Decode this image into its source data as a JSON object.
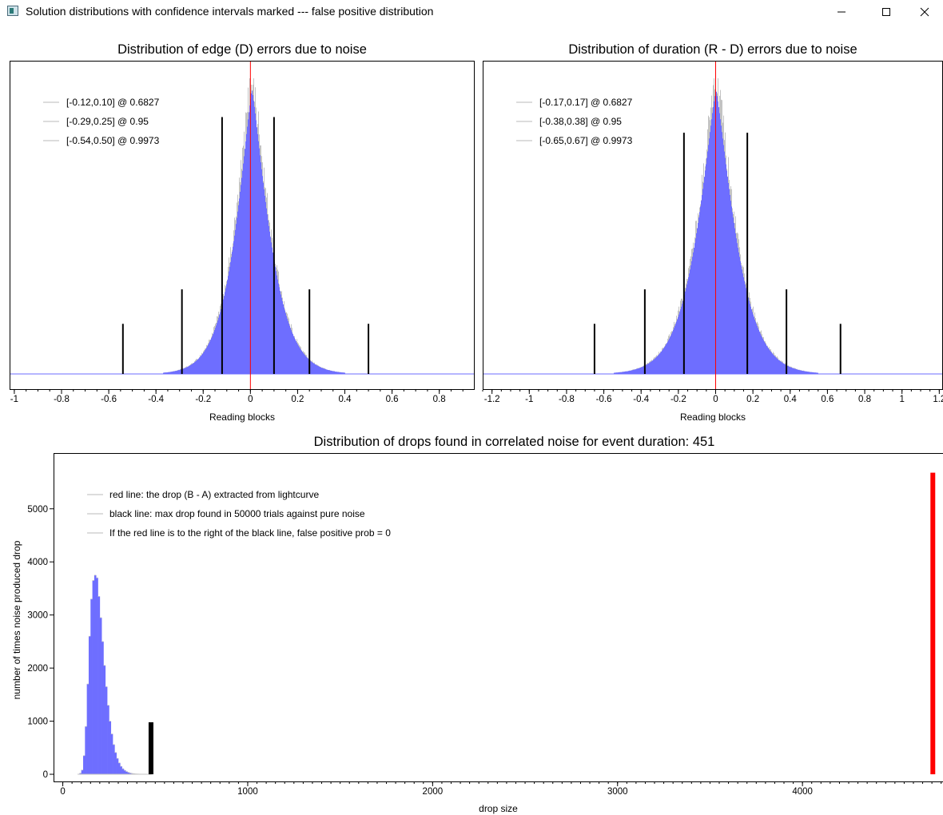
{
  "window": {
    "title": "Solution distributions with confidence intervals marked --- false positive distribution",
    "icons": {
      "app": "app-window-icon",
      "minimize": "minimize-icon",
      "maximize": "maximize-icon",
      "close": "close-icon"
    }
  },
  "chart_data": [
    {
      "type": "bar",
      "title": "Distribution of edge (D) errors due to noise",
      "xlabel": "Reading blocks",
      "ylabel": "",
      "xlim": [
        -1.02,
        0.95
      ],
      "xticks": [
        -1,
        -0.8,
        -0.6,
        -0.4,
        -0.2,
        0,
        0.2,
        0.4,
        0.6,
        0.8
      ],
      "xtick_labels": [
        "-1",
        "-0.8",
        "-0.6",
        "-0.4",
        "-0.2",
        "0",
        "0.2",
        "0.4",
        "0.6",
        "0.8"
      ],
      "y_ticks_shown": false,
      "distribution": {
        "center": 0.005,
        "scale_left": 0.1,
        "scale_right": 0.105,
        "shape": "peaked",
        "support": [
          -0.56,
          0.55
        ]
      },
      "center_line": {
        "x": 0,
        "color": "#ff0000"
      },
      "confidence_intervals": [
        {
          "label": "[-0.12,0.10] @ 0.6827",
          "low": -0.12,
          "high": 0.1,
          "height": 0.82
        },
        {
          "label": "[-0.29,0.25] @ 0.95",
          "low": -0.29,
          "high": 0.25,
          "height": 0.27
        },
        {
          "label": "[-0.54,0.50] @ 0.9973",
          "low": -0.54,
          "high": 0.5,
          "height": 0.16
        }
      ],
      "legend_position": "top-left",
      "colors": {
        "fill": "#6e6eff",
        "outline": "#c3c3c3",
        "baseline": "#6e6eff",
        "ci": "#000000"
      }
    },
    {
      "type": "bar",
      "title": "Distribution of duration (R - D) errors due to noise",
      "xlabel": "Reading blocks",
      "ylabel": "",
      "xlim": [
        -1.25,
        1.22
      ],
      "xticks": [
        -1.2,
        -1,
        -0.8,
        -0.6,
        -0.4,
        -0.2,
        0,
        0.2,
        0.4,
        0.6,
        0.8,
        1,
        1.2
      ],
      "xtick_labels": [
        "-1.2",
        "-1",
        "-0.8",
        "-0.6",
        "-0.4",
        "-0.2",
        "0",
        "0.2",
        "0.4",
        "0.6",
        "0.8",
        "1",
        "1.2"
      ],
      "y_ticks_shown": false,
      "distribution": {
        "center": 0.0,
        "scale_left": 0.145,
        "scale_right": 0.145,
        "shape": "peaked",
        "support": [
          -0.75,
          0.75
        ]
      },
      "center_line": {
        "x": 0,
        "color": "#ff0000"
      },
      "confidence_intervals": [
        {
          "label": "[-0.17,0.17] @ 0.6827",
          "low": -0.17,
          "high": 0.17,
          "height": 0.77
        },
        {
          "label": "[-0.38,0.38] @ 0.95",
          "low": -0.38,
          "high": 0.38,
          "height": 0.27
        },
        {
          "label": "[-0.65,0.67] @ 0.9973",
          "low": -0.65,
          "high": 0.67,
          "height": 0.16
        }
      ],
      "legend_position": "top-left",
      "colors": {
        "fill": "#6e6eff",
        "outline": "#c3c3c3",
        "baseline": "#6e6eff",
        "ci": "#000000"
      }
    },
    {
      "type": "bar",
      "title": "Distribution of drops found in correlated noise for event duration: 451",
      "xlabel": "drop size",
      "ylabel": "number of times noise produced drop",
      "xlim": [
        -50,
        4760
      ],
      "ylim": [
        -150,
        6050
      ],
      "xticks": [
        0,
        1000,
        2000,
        3000,
        4000
      ],
      "xtick_labels": [
        "0",
        "1000",
        "2000",
        "3000",
        "4000"
      ],
      "yticks": [
        0,
        1000,
        2000,
        3000,
        4000,
        5000
      ],
      "ytick_labels": [
        "0",
        "1000",
        "2000",
        "3000",
        "4000",
        "5000"
      ],
      "histogram": {
        "bin_width": 10,
        "x": [
          90,
          100,
          110,
          120,
          130,
          140,
          150,
          160,
          170,
          180,
          190,
          200,
          210,
          220,
          230,
          240,
          250,
          260,
          270,
          280,
          290,
          300,
          310,
          320,
          330,
          340,
          350,
          360,
          370,
          380,
          390,
          400,
          410,
          420,
          430,
          440,
          450,
          460,
          470
        ],
        "counts": [
          20,
          80,
          350,
          900,
          1700,
          2600,
          3300,
          3650,
          3750,
          3700,
          3350,
          2950,
          2500,
          2050,
          1650,
          1300,
          1000,
          760,
          560,
          410,
          300,
          215,
          150,
          105,
          75,
          52,
          36,
          24,
          16,
          11,
          7,
          5,
          3,
          2,
          1,
          1,
          0,
          0,
          0
        ]
      },
      "markers": [
        {
          "name": "max noise drop",
          "x": 477,
          "height": 980,
          "color": "#000000"
        },
        {
          "name": "extracted drop",
          "x": 4705,
          "height": 5680,
          "color": "#ff0000"
        }
      ],
      "legend": [
        "red line: the drop (B - A) extracted from lightcurve",
        "black line: max drop found in 50000 trials against pure noise",
        "If the red line is to the right of the black line, false positive prob = 0"
      ],
      "legend_position": "top-left",
      "colors": {
        "fill": "#6e6eff",
        "outline": "#c3c3c3"
      }
    }
  ]
}
